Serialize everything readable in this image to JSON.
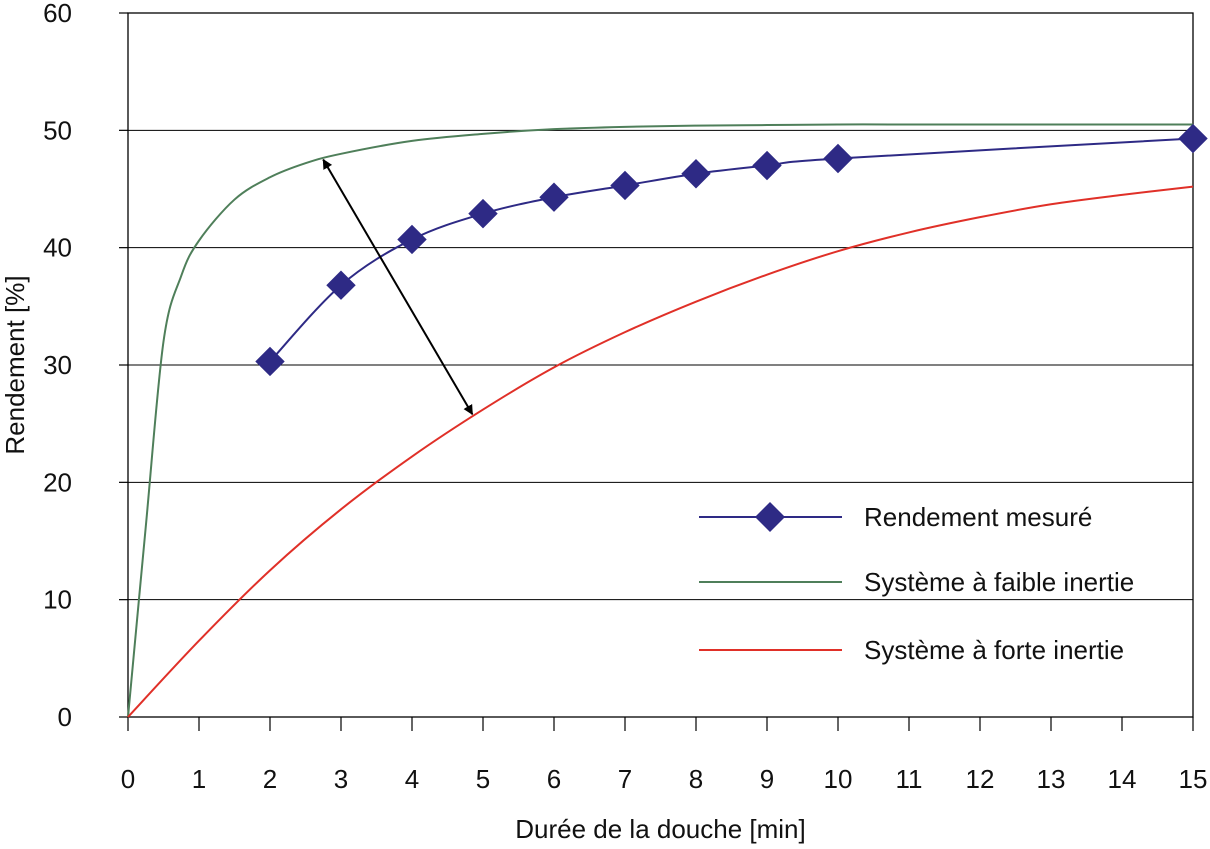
{
  "chart_data": {
    "type": "line",
    "xlabel": "Durée de la douche [min]",
    "ylabel": "Rendement [%]",
    "xlim": [
      0,
      15
    ],
    "ylim": [
      0,
      60
    ],
    "x_ticks": [
      "0",
      "1",
      "2",
      "3",
      "4",
      "5",
      "6",
      "7",
      "8",
      "9",
      "10",
      "11",
      "12",
      "13",
      "14",
      "15"
    ],
    "y_ticks": [
      "0",
      "10",
      "20",
      "30",
      "40",
      "50",
      "60"
    ],
    "grid": "horizontal",
    "legend_position": "bottom-right",
    "series": [
      {
        "name": "Rendement mesuré",
        "color": "#2e2a85",
        "marker": "diamond",
        "x": [
          2,
          3,
          4,
          5,
          6,
          7,
          8,
          9,
          10,
          15
        ],
        "y": [
          30.3,
          36.8,
          40.7,
          42.9,
          44.3,
          45.3,
          46.3,
          47.0,
          47.6,
          49.3
        ]
      },
      {
        "name": "Système à faible inertie",
        "color": "#4f7f5a",
        "marker": "none",
        "x": [
          0,
          0.25,
          0.5,
          0.75,
          1,
          1.5,
          2,
          2.5,
          3,
          4,
          5,
          6,
          7,
          8,
          9,
          10,
          11,
          12,
          13,
          14,
          15
        ],
        "y": [
          0,
          16.2,
          32.0,
          37.6,
          40.6,
          44.1,
          46.0,
          47.2,
          48.0,
          49.1,
          49.7,
          50.1,
          50.3,
          50.4,
          50.45,
          50.5,
          50.5,
          50.5,
          50.5,
          50.5,
          50.5
        ]
      },
      {
        "name": "Système à forte inertie",
        "color": "#e03028",
        "marker": "none",
        "x": [
          0,
          1,
          2,
          3,
          4,
          5,
          6,
          7,
          8,
          9,
          10,
          11,
          12,
          13,
          14,
          15
        ],
        "y": [
          0,
          6.5,
          12.5,
          17.7,
          22.2,
          26.2,
          29.8,
          32.8,
          35.4,
          37.7,
          39.7,
          41.3,
          42.6,
          43.7,
          44.5,
          45.2
        ]
      }
    ],
    "annotations": [
      {
        "type": "double-arrow",
        "from": [
          2.75,
          47.5
        ],
        "to": [
          4.85,
          25.8
        ]
      }
    ]
  }
}
